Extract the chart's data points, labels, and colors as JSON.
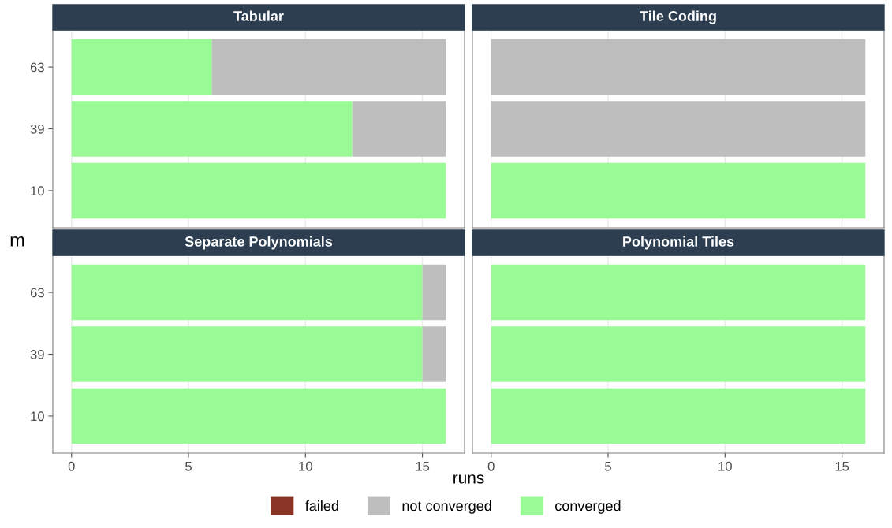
{
  "chart_data": [
    {
      "type": "bar",
      "orientation": "horizontal",
      "stacked": true,
      "title": "Tabular",
      "ylabel": "m",
      "categories": [
        "63",
        "39",
        "10"
      ],
      "xlim": [
        -0.8,
        16.8
      ],
      "xticks": [
        0,
        5,
        10,
        15
      ],
      "tick_labels": "y",
      "grid": "x",
      "legend": "bottom",
      "series": [
        {
          "name": "converged",
          "color": "#9afa96",
          "values": [
            6,
            12,
            16
          ]
        },
        {
          "name": "not converged",
          "color": "#bebebe",
          "values": [
            10,
            4,
            0
          ]
        },
        {
          "name": "failed",
          "color": "#8b3528",
          "values": [
            0,
            0,
            0
          ]
        }
      ]
    },
    {
      "type": "bar",
      "orientation": "horizontal",
      "stacked": true,
      "title": "Tile Coding",
      "categories": [
        "63",
        "39",
        "10"
      ],
      "xlim": [
        -0.8,
        16.8
      ],
      "xticks": [
        0,
        5,
        10,
        15
      ],
      "tick_labels": false,
      "grid": "x",
      "series": [
        {
          "color": "#9afa96",
          "values": [
            0,
            0,
            16
          ]
        },
        {
          "color": "#bebebe",
          "values": [
            16,
            16,
            0
          ]
        },
        {
          "color": "#8b3528",
          "values": [
            0,
            0,
            0
          ]
        }
      ]
    },
    {
      "type": "bar",
      "orientation": "horizontal",
      "stacked": true,
      "title": "Separate Polynomials",
      "xlabel": "runs",
      "categories": [
        "63",
        "39",
        "10"
      ],
      "xlim": [
        -0.8,
        16.8
      ],
      "xticks": [
        0,
        5,
        10,
        15
      ],
      "grid": "x",
      "series": [
        {
          "color": "#9afa96",
          "values": [
            15,
            15,
            16
          ]
        },
        {
          "color": "#bebebe",
          "values": [
            1,
            1,
            0
          ]
        },
        {
          "color": "#8b3528",
          "values": [
            0,
            0,
            0
          ]
        }
      ]
    },
    {
      "type": "bar",
      "orientation": "horizontal",
      "stacked": true,
      "title": "Polynomial Tiles",
      "categories": [
        "63",
        "39",
        "10"
      ],
      "xlim": [
        -0.8,
        16.8
      ],
      "xticks": [
        0,
        5,
        10,
        15
      ],
      "tick_labels": "x",
      "grid": "x",
      "series": [
        {
          "color": "#9afa96",
          "values": [
            16,
            16,
            16
          ]
        },
        {
          "color": "#bebebe",
          "values": [
            0,
            0,
            0
          ]
        },
        {
          "color": "#8b3528",
          "values": [
            0,
            0,
            0
          ]
        }
      ]
    }
  ]
}
